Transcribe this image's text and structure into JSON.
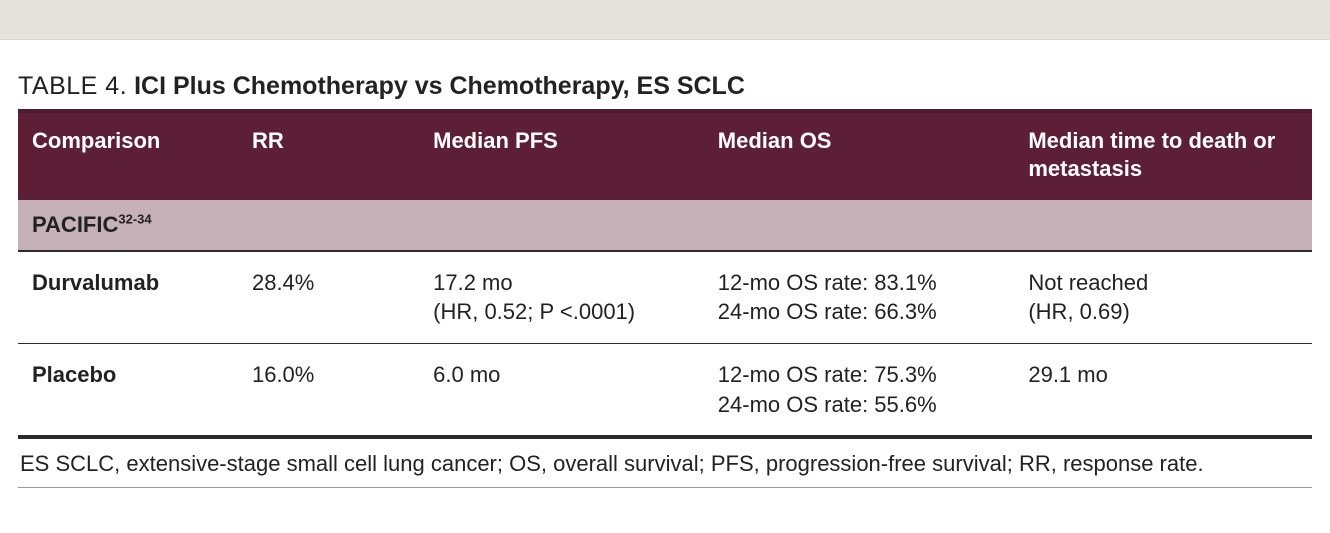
{
  "colors": {
    "top_band": "#e5e2dc",
    "header_bg": "#5d1f36",
    "header_text": "#ffffff",
    "section_bg": "#c7b1b8",
    "rule_dark": "#2b2b2b",
    "text": "#222222"
  },
  "caption": {
    "label": "TABLE 4.",
    "title": "ICI Plus Chemotherapy vs Chemotherapy, ES SCLC"
  },
  "columns": [
    "Comparison",
    "RR",
    "Median PFS",
    "Median OS",
    "Median time to death or metastasis"
  ],
  "section": {
    "name": "PACIFIC",
    "refs": "32-34"
  },
  "rows": [
    {
      "comparison": "Durvalumab",
      "rr": "28.4%",
      "pfs_line1": "17.2 mo",
      "pfs_line2": "(HR, 0.52; P <.0001)",
      "os_line1": "12-mo OS rate: 83.1%",
      "os_line2": "24-mo OS rate: 66.3%",
      "ttdm_line1": "Not reached",
      "ttdm_line2": "(HR, 0.69)"
    },
    {
      "comparison": "Placebo",
      "rr": "16.0%",
      "pfs_line1": "6.0 mo",
      "pfs_line2": "",
      "os_line1": "12-mo OS rate: 75.3%",
      "os_line2": "24-mo OS rate: 55.6%",
      "ttdm_line1": "29.1 mo",
      "ttdm_line2": ""
    }
  ],
  "footnote": "ES SCLC, extensive-stage small cell lung cancer; OS, overall survival; PFS, progression-free survival; RR, response rate."
}
